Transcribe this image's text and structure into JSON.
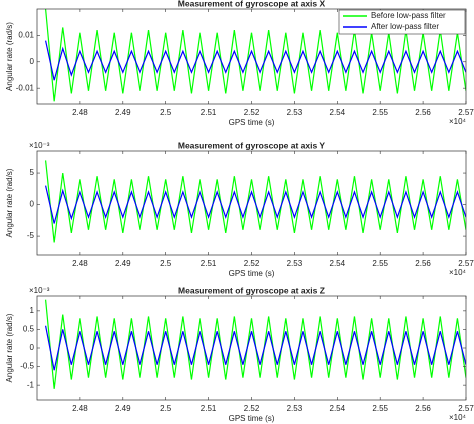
{
  "chart_data": [
    {
      "type": "line",
      "title": "Measurement of gyroscope at axis X",
      "xlabel": "GPS time (s)",
      "ylabel": "Angular rate (rad/s)",
      "x_multiplier": "×10⁴",
      "xlim": [
        2.47,
        2.57
      ],
      "xticks": [
        2.48,
        2.49,
        2.5,
        2.51,
        2.52,
        2.53,
        2.54,
        2.55,
        2.56,
        2.57
      ],
      "ylim": [
        -0.016,
        0.02
      ],
      "yticks": [
        -0.01,
        0,
        0.01
      ],
      "legend": "upper right",
      "x": [
        2.472,
        2.474,
        2.476,
        2.478,
        2.48,
        2.482,
        2.484,
        2.486,
        2.488,
        2.49,
        2.492,
        2.494,
        2.496,
        2.498,
        2.5,
        2.502,
        2.504,
        2.506,
        2.508,
        2.51,
        2.512,
        2.514,
        2.516,
        2.518,
        2.52,
        2.522,
        2.524,
        2.526,
        2.528,
        2.53,
        2.532,
        2.534,
        2.536,
        2.538,
        2.54,
        2.542,
        2.544,
        2.546,
        2.548,
        2.55,
        2.552,
        2.554,
        2.556,
        2.558,
        2.56,
        2.562,
        2.564,
        2.566,
        2.568,
        2.57
      ],
      "series": [
        {
          "name": "Before low-pass filter",
          "color": "#00ff00",
          "values": [
            0.02,
            -0.015,
            0.013,
            -0.012,
            0.011,
            -0.011,
            0.012,
            -0.011,
            0.011,
            -0.012,
            0.011,
            -0.011,
            0.012,
            -0.011,
            0.011,
            -0.011,
            0.012,
            -0.012,
            0.011,
            -0.011,
            0.011,
            -0.012,
            0.012,
            -0.011,
            0.011,
            -0.011,
            0.012,
            -0.011,
            0.011,
            -0.012,
            0.011,
            -0.011,
            0.012,
            -0.011,
            0.011,
            -0.011,
            0.012,
            -0.012,
            0.011,
            -0.011,
            0.011,
            -0.012,
            0.012,
            -0.011,
            0.011,
            -0.011,
            0.012,
            -0.011,
            0.011,
            -0.011
          ]
        },
        {
          "name": "After low-pass filter",
          "color": "#0000ff",
          "values": [
            0.008,
            -0.007,
            0.005,
            -0.005,
            0.004,
            -0.004,
            0.004,
            -0.004,
            0.004,
            -0.004,
            0.004,
            -0.004,
            0.004,
            -0.004,
            0.004,
            -0.004,
            0.004,
            -0.004,
            0.004,
            -0.004,
            0.004,
            -0.004,
            0.004,
            -0.004,
            0.004,
            -0.004,
            0.004,
            -0.004,
            0.004,
            -0.004,
            0.004,
            -0.004,
            0.004,
            -0.004,
            0.004,
            -0.004,
            0.004,
            -0.004,
            0.004,
            -0.004,
            0.004,
            -0.004,
            0.004,
            -0.004,
            0.004,
            -0.004,
            0.004,
            -0.004,
            0.004,
            -0.004
          ]
        }
      ]
    },
    {
      "type": "line",
      "title": "Measurement of gyroscope at axis Y",
      "xlabel": "GPS time (s)",
      "ylabel": "Angular rate (rad/s)",
      "x_multiplier": "×10⁴",
      "y_multiplier": "×10⁻³",
      "xlim": [
        2.47,
        2.57
      ],
      "xticks": [
        2.48,
        2.49,
        2.5,
        2.51,
        2.52,
        2.53,
        2.54,
        2.55,
        2.56,
        2.57
      ],
      "ylim": [
        -8,
        8.5
      ],
      "yticks": [
        -5,
        0,
        5
      ],
      "x": [
        2.472,
        2.474,
        2.476,
        2.478,
        2.48,
        2.482,
        2.484,
        2.486,
        2.488,
        2.49,
        2.492,
        2.494,
        2.496,
        2.498,
        2.5,
        2.502,
        2.504,
        2.506,
        2.508,
        2.51,
        2.512,
        2.514,
        2.516,
        2.518,
        2.52,
        2.522,
        2.524,
        2.526,
        2.528,
        2.53,
        2.532,
        2.534,
        2.536,
        2.538,
        2.54,
        2.542,
        2.544,
        2.546,
        2.548,
        2.55,
        2.552,
        2.554,
        2.556,
        2.558,
        2.56,
        2.562,
        2.564,
        2.566,
        2.568,
        2.57
      ],
      "series": [
        {
          "name": "Before low-pass filter",
          "color": "#00ff00",
          "values": [
            7,
            -6,
            5,
            -4.5,
            4,
            -4,
            4.5,
            -4,
            4,
            -4.5,
            4,
            -4,
            4.5,
            -4,
            4,
            -4,
            4.5,
            -4.5,
            4,
            -4,
            4,
            -4.5,
            4.5,
            -4,
            4,
            -4,
            4.5,
            -4,
            4,
            -4.5,
            4,
            -4,
            4.5,
            -4,
            4,
            -4,
            4.5,
            -4.5,
            4,
            -4,
            4,
            -4.5,
            4.5,
            -4,
            4,
            -4,
            4.5,
            -4,
            4,
            -4
          ]
        },
        {
          "name": "After low-pass filter",
          "color": "#0000ff",
          "values": [
            3,
            -3,
            2.2,
            -2.2,
            2,
            -2,
            2,
            -2,
            2,
            -2,
            2,
            -2,
            2,
            -2,
            2,
            -2,
            2,
            -2,
            2,
            -2,
            2,
            -2,
            2,
            -2,
            2,
            -2,
            2,
            -2,
            2,
            -2,
            2,
            -2,
            2,
            -2,
            2,
            -2,
            2,
            -2,
            2,
            -2,
            2,
            -2,
            2,
            -2,
            2,
            -2,
            2,
            -2,
            2,
            -2
          ]
        }
      ]
    },
    {
      "type": "line",
      "title": "Measurement of gyroscope at axis Z",
      "xlabel": "GPS time (s)",
      "ylabel": "Angular rate (rad/s)",
      "x_multiplier": "×10⁴",
      "y_multiplier": "×10⁻³",
      "xlim": [
        2.47,
        2.57
      ],
      "xticks": [
        2.48,
        2.49,
        2.5,
        2.51,
        2.52,
        2.53,
        2.54,
        2.55,
        2.56,
        2.57
      ],
      "ylim": [
        -1.4,
        1.4
      ],
      "yticks": [
        -1,
        -0.5,
        0,
        0.5,
        1
      ],
      "x": [
        2.472,
        2.474,
        2.476,
        2.478,
        2.48,
        2.482,
        2.484,
        2.486,
        2.488,
        2.49,
        2.492,
        2.494,
        2.496,
        2.498,
        2.5,
        2.502,
        2.504,
        2.506,
        2.508,
        2.51,
        2.512,
        2.514,
        2.516,
        2.518,
        2.52,
        2.522,
        2.524,
        2.526,
        2.528,
        2.53,
        2.532,
        2.534,
        2.536,
        2.538,
        2.54,
        2.542,
        2.544,
        2.546,
        2.548,
        2.55,
        2.552,
        2.554,
        2.556,
        2.558,
        2.56,
        2.562,
        2.564,
        2.566,
        2.568,
        2.57
      ],
      "series": [
        {
          "name": "Before low-pass filter",
          "color": "#00ff00",
          "values": [
            1.3,
            -1.1,
            0.9,
            -0.85,
            0.8,
            -0.8,
            0.85,
            -0.8,
            0.8,
            -0.85,
            0.8,
            -0.8,
            0.85,
            -0.8,
            0.8,
            -0.8,
            0.85,
            -0.85,
            0.8,
            -0.8,
            0.8,
            -0.85,
            0.85,
            -0.8,
            0.8,
            -0.8,
            0.85,
            -0.8,
            0.8,
            -0.85,
            0.8,
            -0.8,
            0.85,
            -0.8,
            0.8,
            -0.8,
            0.85,
            -0.85,
            0.8,
            -0.8,
            0.8,
            -0.85,
            0.85,
            -0.8,
            0.8,
            -0.8,
            0.85,
            -0.8,
            0.8,
            -0.8
          ]
        },
        {
          "name": "After low-pass filter",
          "color": "#0000ff",
          "values": [
            0.6,
            -0.6,
            0.5,
            -0.45,
            0.45,
            -0.45,
            0.45,
            -0.45,
            0.45,
            -0.45,
            0.45,
            -0.45,
            0.45,
            -0.45,
            0.45,
            -0.45,
            0.45,
            -0.45,
            0.45,
            -0.45,
            0.45,
            -0.45,
            0.45,
            -0.45,
            0.45,
            -0.45,
            0.45,
            -0.45,
            0.45,
            -0.45,
            0.45,
            -0.45,
            0.45,
            -0.45,
            0.45,
            -0.45,
            0.45,
            -0.45,
            0.45,
            -0.45,
            0.45,
            -0.45,
            0.45,
            -0.45,
            0.45,
            -0.45,
            0.45,
            -0.45,
            0.45,
            -0.45
          ]
        }
      ]
    }
  ]
}
